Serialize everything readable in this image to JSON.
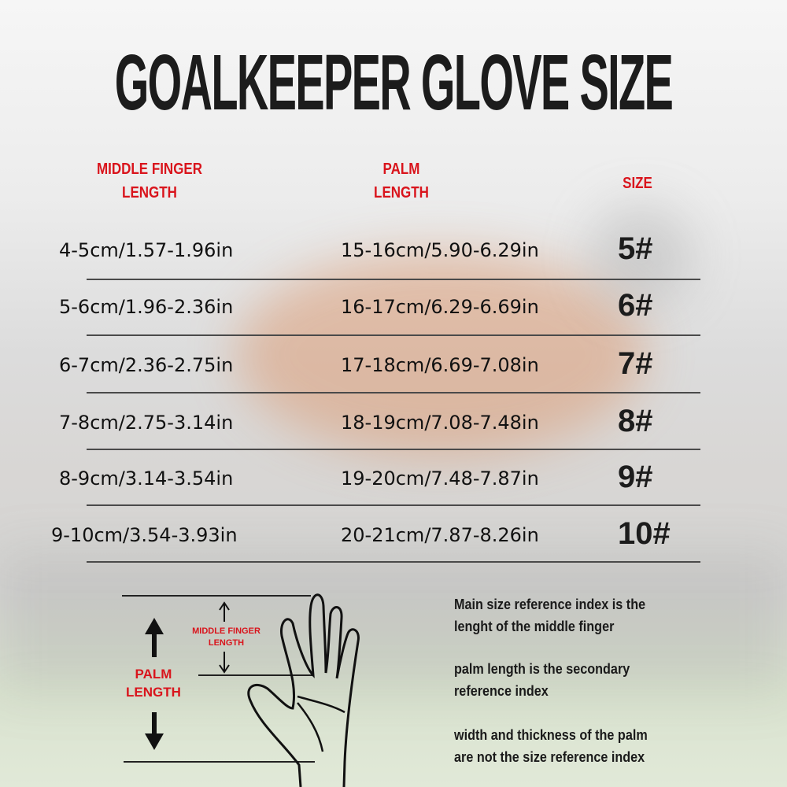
{
  "title": "GOALKEEPER GLOVE SIZE",
  "headers": {
    "middle_finger": "MIDDLE FINGER\nLENGTH",
    "palm": "PALM\nLENGTH",
    "size": "SIZE"
  },
  "rows": [
    {
      "finger": "4-5cm/1.57-1.96in",
      "palm": "15-16cm/5.90-6.29in",
      "size": "5#"
    },
    {
      "finger": "5-6cm/1.96-2.36in",
      "palm": "16-17cm/6.29-6.69in",
      "size": "6#"
    },
    {
      "finger": "6-7cm/2.36-2.75in",
      "palm": "17-18cm/6.69-7.08in",
      "size": "7#"
    },
    {
      "finger": "7-8cm/2.75-3.14in",
      "palm": "18-19cm/7.08-7.48in",
      "size": "8#"
    },
    {
      "finger": "8-9cm/3.14-3.54in",
      "palm": "19-20cm/7.48-7.87in",
      "size": "9#"
    },
    {
      "finger": "9-10cm/3.54-3.93in",
      "palm": "20-21cm/7.87-8.26in",
      "size": "10#"
    }
  ],
  "diagram": {
    "finger_label": "MIDDLE FINGER\nLENGTH",
    "palm_label": "PALM\nLENGTH"
  },
  "notes": [
    "Main size reference index is the\nlenght of the middle finger",
    "palm length is the secondary\nreference index",
    "width and thickness of the palm\nare not the size reference index"
  ],
  "colors": {
    "accent": "#d9141c",
    "text": "#1c1c1c"
  }
}
